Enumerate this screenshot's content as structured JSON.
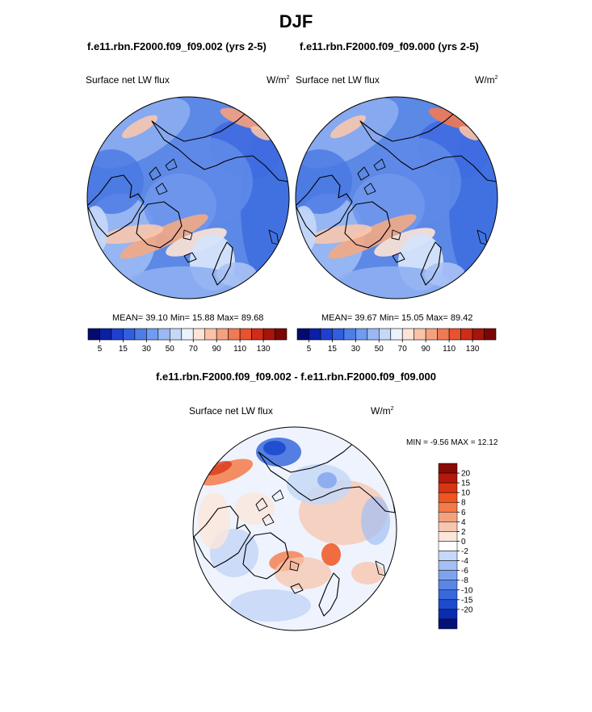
{
  "figure": {
    "title": "DJF",
    "legend_title": "W/m",
    "legend_title_sup": "2"
  },
  "panels": [
    {
      "case_title": "f.e11.rbn.F2000.f09_f09.002 (yrs 2-5)",
      "variable": "Surface net LW flux",
      "units": "W/m",
      "units_sup": "2",
      "stats": "MEAN=  39.10  Min=  15.88  Max=  89.68"
    },
    {
      "case_title": "f.e11.rbn.F2000.f09_f09.000 (yrs 2-5)",
      "variable": "Surface net LW flux",
      "units": "W/m",
      "units_sup": "2",
      "stats": "MEAN=  39.67  Min=  15.05  Max=  89.42"
    },
    {
      "case_title": "f.e11.rbn.F2000.f09_f09.002 - f.e11.rbn.F2000.f09_f09.000",
      "variable": "Surface net LW flux",
      "units": "W/m",
      "units_sup": "2",
      "stats": "MIN =  -9.56 MAX =  12.12"
    }
  ],
  "chart_data": [
    {
      "type": "heatmap",
      "projection": "north-polar-stereographic",
      "title": "f.e11.rbn.F2000.f09_f09.002 (yrs 2-5)",
      "variable": "Surface net LW flux",
      "units": "W/m2",
      "mean": 39.1,
      "min": 15.88,
      "max": 89.68,
      "colorbar": {
        "orientation": "horizontal",
        "tick_labels": [
          "5",
          "15",
          "30",
          "50",
          "70",
          "90",
          "110",
          "130"
        ],
        "colors": [
          "#040a6e",
          "#0a1fa5",
          "#1f3fd0",
          "#2f5fe0",
          "#4d7ee8",
          "#6f9bf0",
          "#9ab8f4",
          "#c5d8f8",
          "#eaf2fd",
          "#fde4d6",
          "#f9c3a8",
          "#f5a07f",
          "#f07a53",
          "#e7522f",
          "#cf2d16",
          "#a5150a",
          "#7a0606"
        ]
      }
    },
    {
      "type": "heatmap",
      "projection": "north-polar-stereographic",
      "title": "f.e11.rbn.F2000.f09_f09.000 (yrs 2-5)",
      "variable": "Surface net LW flux",
      "units": "W/m2",
      "mean": 39.67,
      "min": 15.05,
      "max": 89.42,
      "colorbar": {
        "orientation": "horizontal",
        "tick_labels": [
          "5",
          "15",
          "30",
          "50",
          "70",
          "90",
          "110",
          "130"
        ],
        "colors": [
          "#040a6e",
          "#0a1fa5",
          "#1f3fd0",
          "#2f5fe0",
          "#4d7ee8",
          "#6f9bf0",
          "#9ab8f4",
          "#c5d8f8",
          "#eaf2fd",
          "#fde4d6",
          "#f9c3a8",
          "#f5a07f",
          "#f07a53",
          "#e7522f",
          "#cf2d16",
          "#a5150a",
          "#7a0606"
        ]
      }
    },
    {
      "type": "heatmap",
      "projection": "north-polar-stereographic",
      "title": "f.e11.rbn.F2000.f09_f09.002 - f.e11.rbn.F2000.f09_f09.000",
      "variable": "Surface net LW flux",
      "units": "W/m2",
      "min": -9.56,
      "max": 12.12,
      "colorbar": {
        "orientation": "vertical",
        "tick_labels": [
          "20",
          "15",
          "10",
          "8",
          "6",
          "4",
          "2",
          "0",
          "-2",
          "-4",
          "-6",
          "-8",
          "-10",
          "-15",
          "-20"
        ],
        "colors": [
          "#8a0a05",
          "#b31a0d",
          "#d93412",
          "#f05520",
          "#f47a48",
          "#f4a27e",
          "#f7c6ae",
          "#fbe6d9",
          "#ffffff",
          "#c6d8f7",
          "#a3bff3",
          "#7ea3ee",
          "#5a86e6",
          "#3868dc",
          "#1d4acf",
          "#0b2cae",
          "#041277"
        ]
      }
    }
  ]
}
